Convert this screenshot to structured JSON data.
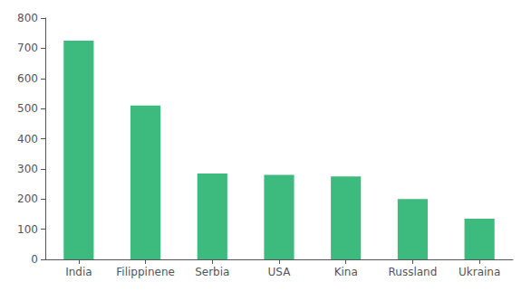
{
  "chart_data": {
    "type": "bar",
    "categories": [
      "India",
      "Filippinene",
      "Serbia",
      "USA",
      "Kina",
      "Russland",
      "Ukraina"
    ],
    "values": [
      725,
      510,
      285,
      280,
      275,
      200,
      135
    ],
    "color": "#3dba7e",
    "ylim": [
      0,
      800
    ],
    "yticks": [
      0,
      100,
      200,
      300,
      400,
      500,
      600,
      700,
      800
    ],
    "grid": false
  }
}
